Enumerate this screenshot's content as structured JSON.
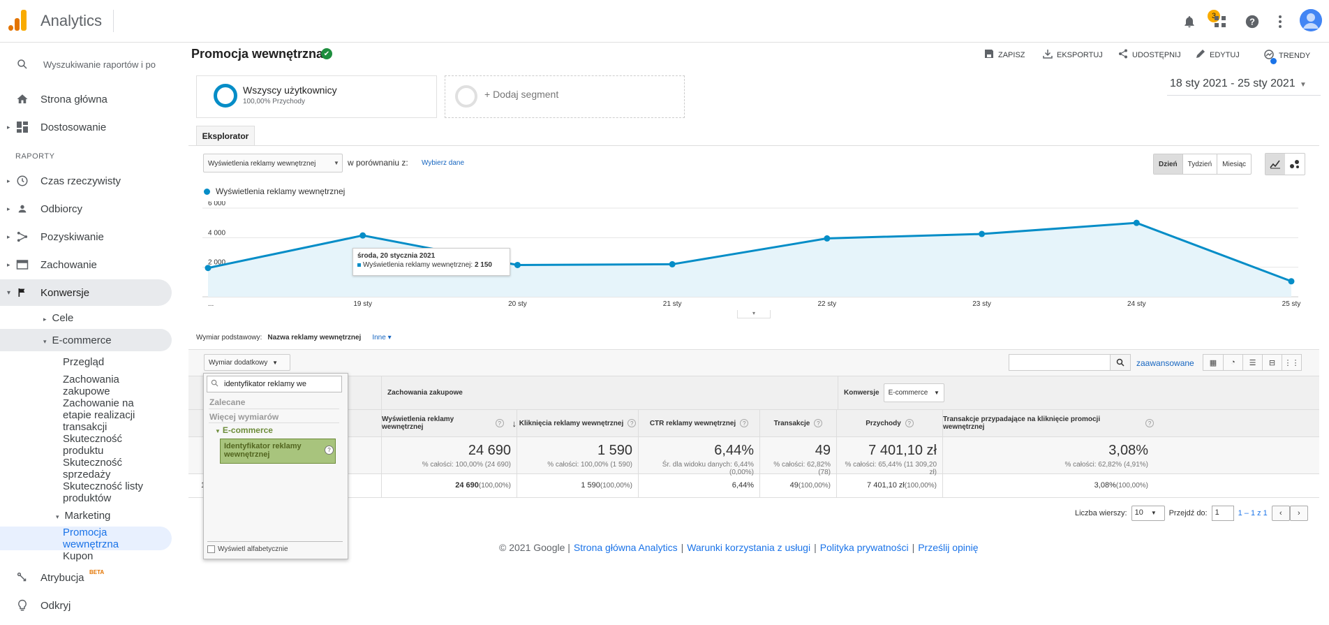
{
  "app": {
    "title": "Analytics",
    "notification_count": "3"
  },
  "sidebar": {
    "search_placeholder": "Wyszukiwanie raportów i po",
    "home": "Strona główna",
    "customization": "Dostosowanie",
    "section_reports": "RAPORTY",
    "realtime": "Czas rzeczywisty",
    "audience": "Odbiorcy",
    "acquisition": "Pozyskiwanie",
    "behavior": "Zachowanie",
    "conversions": "Konwersje",
    "goals": "Cele",
    "ecommerce": "E-commerce",
    "ecom_items": [
      "Przegląd",
      "Zachowania zakupowe",
      "Zachowanie na etapie realizacji transakcji",
      "Skuteczność produktu",
      "Skuteczność sprzedaży",
      "Skuteczność listy produktów"
    ],
    "marketing": "Marketing",
    "internal_promo": "Promocja wewnętrzna",
    "coupon": "Kupon",
    "attribution": "Atrybucja",
    "attribution_badge": "BETA",
    "discover": "Odkryj"
  },
  "header": {
    "title": "Promocja wewnętrzna",
    "actions": {
      "save": "ZAPISZ",
      "export": "EKSPORTUJ",
      "share": "UDOSTĘPNIJ",
      "edit": "EDYTUJ",
      "insights": "TRENDY"
    }
  },
  "segments": {
    "primary_name": "Wszyscy użytkownicy",
    "primary_sub": "100,00% Przychody",
    "add": "+ Dodaj segment"
  },
  "date_range": "18 sty 2021 - 25 sty 2021",
  "explorer_tab": "Eksplorator",
  "metric_selector": {
    "value": "Wyświetlenia reklamy wewnętrznej",
    "vs_label": "w porównaniu z:",
    "choose_link": "Wybierz dane"
  },
  "periods": [
    "Dzień",
    "Tydzień",
    "Miesiąc"
  ],
  "chart_data": {
    "type": "line",
    "series": [
      {
        "name": "Wyświetlenia reklamy wewnętrznej",
        "values": [
          1950,
          4150,
          2150,
          2200,
          3950,
          4250,
          5000,
          1050
        ]
      }
    ],
    "x": [
      "...",
      "19 sty",
      "20 sty",
      "21 sty",
      "22 sty",
      "23 sty",
      "24 sty",
      "25 sty"
    ],
    "y_ticks": [
      "2 000",
      "4 000",
      "6 000"
    ],
    "ylim": [
      0,
      6000
    ],
    "grid": true,
    "color": "#058dc7"
  },
  "tooltip": {
    "title": "środa, 20 stycznia 2021",
    "label": "Wyświetlenia reklamy wewnętrznej:",
    "value": "2 150"
  },
  "dimensions": {
    "primary_label": "Wymiar podstawowy:",
    "primary_value": "Nazwa reklamy wewnętrznej",
    "other": "Inne",
    "secondary": "Wymiar dodatkowy"
  },
  "table_tools": {
    "advanced": "zaawansowane"
  },
  "table": {
    "group_behavior": "Zachowania zakupowe",
    "group_conversions": "Konwersje",
    "conversions_select": "E-commerce",
    "columns": [
      "Wyświetlenia reklamy wewnętrznej",
      "Kliknięcia reklamy wewnętrznej",
      "CTR reklamy wewnętrznej",
      "Transakcje",
      "Przychody",
      "Transakcje przypadające na kliknięcie promocji wewnętrznej"
    ],
    "totals": [
      {
        "value": "24 690",
        "sub": "% całości: 100,00% (24 690)"
      },
      {
        "value": "1 590",
        "sub": "% całości: 100,00% (1 590)"
      },
      {
        "value": "6,44%",
        "sub": "Śr. dla widoku danych: 6,44% (0,00%)"
      },
      {
        "value": "49",
        "sub": "% całości: 62,82% (78)"
      },
      {
        "value": "7 401,10 zł",
        "sub": "% całości: 65,44% (11 309,20 zł)"
      },
      {
        "value": "3,08%",
        "sub": "% całości: 62,82% (4,91%)"
      }
    ],
    "row": [
      {
        "value": "24 690",
        "pct": "(100,00%)"
      },
      {
        "value": "1 590",
        "pct": "(100,00%)"
      },
      {
        "value": "6,44%",
        "pct": ""
      },
      {
        "value": "49",
        "pct": "(100,00%)"
      },
      {
        "value": "7 401,10 zł",
        "pct": "(100,00%)"
      },
      {
        "value": "3,08%",
        "pct": "(100,00%)"
      }
    ],
    "row_number": "1"
  },
  "pager": {
    "rows_label": "Liczba wierszy:",
    "rows_value": "10",
    "goto_label": "Przejdź do:",
    "goto_value": "1",
    "range": "1 – 1 z 1"
  },
  "footer": {
    "copy": "© 2021 Google |",
    "home": "Strona główna Analytics",
    "terms": "Warunki korzystania z usługi",
    "privacy": "Polityka prywatności",
    "feedback": "Prześlij opinię",
    "sep": "|"
  },
  "dropdown": {
    "search_value": "identyfikator reklamy we",
    "recommended": "Zalecane",
    "more": "Więcej wymiarów",
    "group": "E-commerce",
    "item": "Identyfikator reklamy wewnętrznej",
    "alphabetical": "Wyświetl alfabetycznie"
  }
}
